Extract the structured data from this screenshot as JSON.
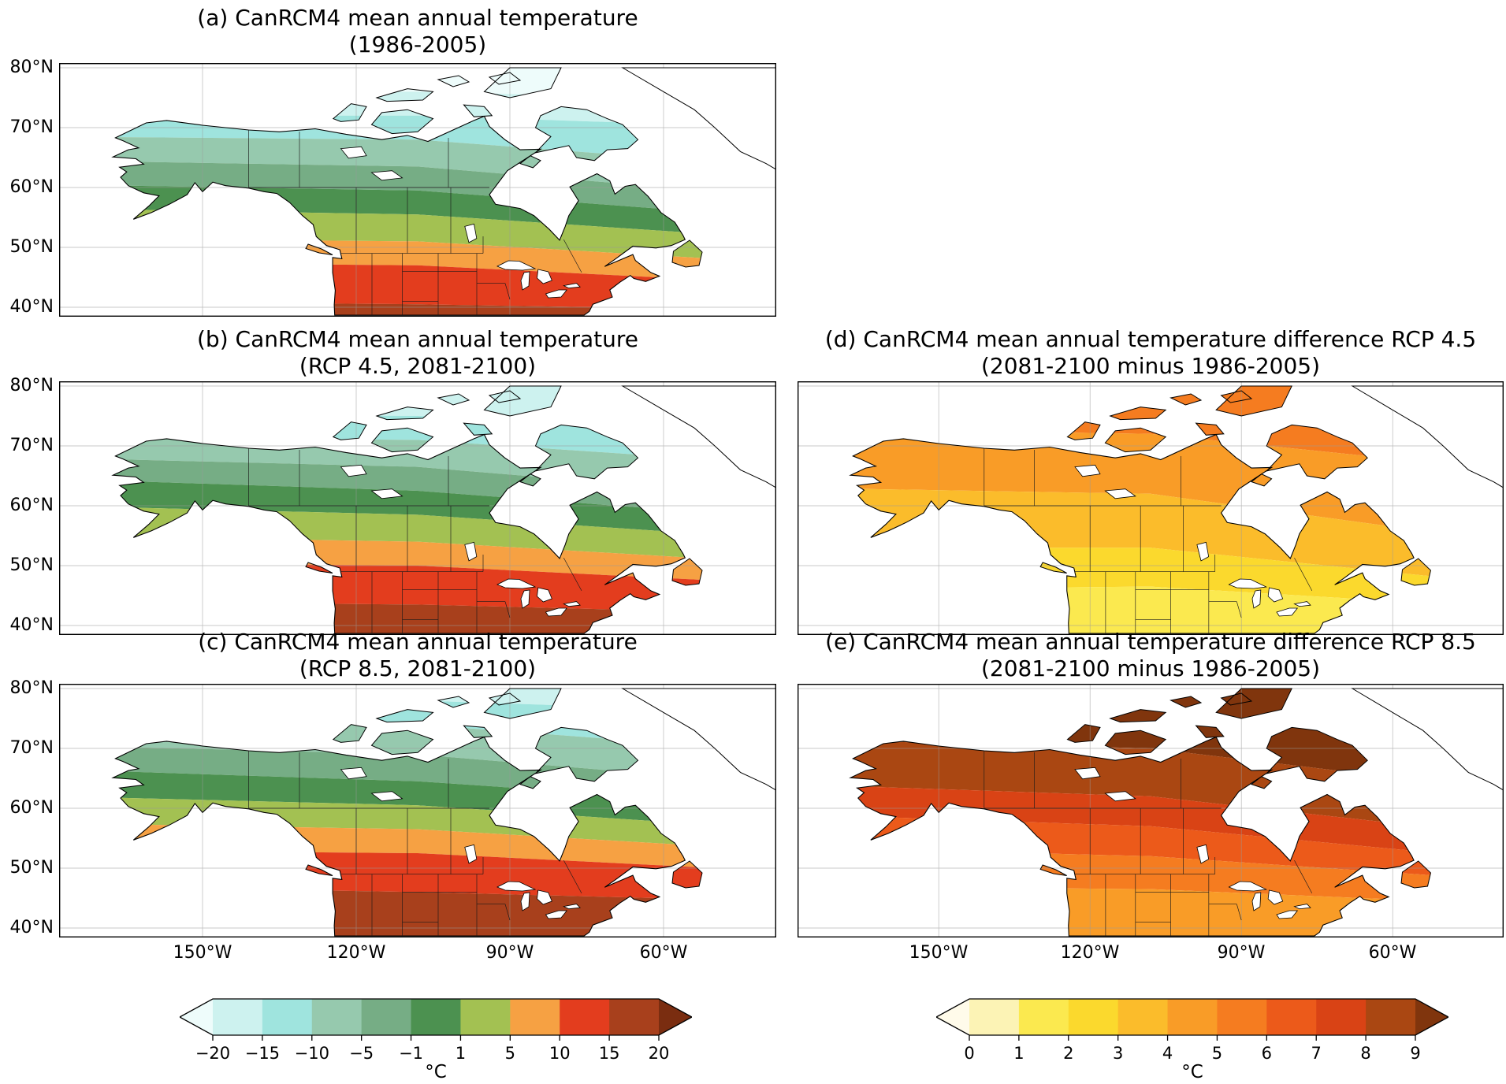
{
  "axes": {
    "lat_ticks": [
      "80°N",
      "70°N",
      "60°N",
      "50°N",
      "40°N"
    ],
    "lon_ticks": [
      "150°W",
      "120°W",
      "90°W",
      "60°W"
    ]
  },
  "panels": [
    {
      "id": "a",
      "title": "(a) CanRCM4 mean annual temperature",
      "subtitle": "(1986-2005)",
      "bands": [
        {
          "level": "< −20",
          "color": "#eefcfb",
          "to": [
            76,
            76,
            74.5
          ]
        },
        {
          "level": "−20 to −15",
          "color": "#cdf2ef",
          "to": [
            72,
            72,
            70
          ]
        },
        {
          "level": "−15 to −10",
          "color": "#9fe4de",
          "to": [
            68.5,
            68,
            63.5
          ]
        },
        {
          "level": "−10 to −5",
          "color": "#96c9ae",
          "to": [
            64.5,
            63.5,
            58.5
          ]
        },
        {
          "level": "−5 to −1",
          "color": "#76ad85",
          "to": [
            60.5,
            59.5,
            55
          ]
        },
        {
          "level": "−1 to 1",
          "color": "#4c9150",
          "to": [
            56.5,
            55.5,
            51.5
          ]
        },
        {
          "level": "1 to 5",
          "color": "#a3c152",
          "to": [
            51.5,
            51,
            47.5
          ]
        },
        {
          "level": "5 to 10",
          "color": "#f6a143",
          "to": [
            47.5,
            47,
            44
          ]
        },
        {
          "level": "10 to 15",
          "color": "#e33d1e",
          "to": [
            41,
            40.5,
            39.5
          ]
        },
        {
          "level": "15 to 20",
          "color": "#a8401c",
          "to": [
            30,
            30,
            30
          ]
        }
      ]
    },
    {
      "id": "b",
      "title": "(b) CanRCM4 mean annual temperature",
      "subtitle": "(RCP 4.5, 2081-2100)",
      "bands": [
        {
          "level": "−20 to −15",
          "color": "#cdf2ef",
          "to": [
            75.5,
            75,
            73
          ]
        },
        {
          "level": "−15 to −10",
          "color": "#9fe4de",
          "to": [
            71.5,
            71,
            67
          ]
        },
        {
          "level": "−10 to −5",
          "color": "#96c9ae",
          "to": [
            68,
            66.5,
            61.5
          ]
        },
        {
          "level": "−5 to −1",
          "color": "#76ad85",
          "to": [
            64.5,
            62.5,
            58
          ]
        },
        {
          "level": "−1 to 1",
          "color": "#4c9150",
          "to": [
            60,
            58.5,
            54.5
          ]
        },
        {
          "level": "1 to 5",
          "color": "#a3c152",
          "to": [
            55,
            54,
            50.5
          ]
        },
        {
          "level": "5 to 10",
          "color": "#f6a143",
          "to": [
            50.5,
            50,
            47
          ]
        },
        {
          "level": "10 to 15",
          "color": "#e33d1e",
          "to": [
            44,
            43.5,
            42
          ]
        },
        {
          "level": "15 to 20",
          "color": "#a8401c",
          "to": [
            30,
            30,
            30
          ]
        }
      ]
    },
    {
      "id": "c",
      "title": "(c) CanRCM4 mean annual temperature",
      "subtitle": "(RCP 8.5, 2081-2100)",
      "bands": [
        {
          "level": "−20 to −15",
          "color": "#cdf2ef",
          "to": [
            78,
            78,
            76
          ]
        },
        {
          "level": "−15 to −10",
          "color": "#9fe4de",
          "to": [
            74.5,
            74,
            69.5
          ]
        },
        {
          "level": "−10 to −5",
          "color": "#96c9ae",
          "to": [
            70.5,
            69,
            64
          ]
        },
        {
          "level": "−5 to −1",
          "color": "#76ad85",
          "to": [
            66.5,
            64.5,
            60.5
          ]
        },
        {
          "level": "−1 to 1",
          "color": "#4c9150",
          "to": [
            62,
            60.5,
            56.5
          ]
        },
        {
          "level": "1 to 5",
          "color": "#a3c152",
          "to": [
            57.5,
            56.5,
            53
          ]
        },
        {
          "level": "5 to 10",
          "color": "#f6a143",
          "to": [
            53,
            52.5,
            49.5
          ]
        },
        {
          "level": "10 to 15",
          "color": "#e33d1e",
          "to": [
            47,
            46,
            44.5
          ]
        },
        {
          "level": "15 to 20",
          "color": "#a8401c",
          "to": [
            30,
            30,
            30
          ]
        }
      ]
    },
    {
      "id": "d",
      "title": "(d) CanRCM4 mean annual temperature difference RCP 4.5",
      "subtitle": "(2081-2100 minus 1986-2005)",
      "bands": [
        {
          "level": "5 to 6",
          "color": "#f57c20",
          "to": [
            73,
            72,
            66
          ]
        },
        {
          "level": "4 to 5",
          "color": "#f99c27",
          "to": [
            63,
            62,
            54
          ]
        },
        {
          "level": "3 to 4",
          "color": "#fbbc2b",
          "to": [
            53,
            53,
            47
          ]
        },
        {
          "level": "2 to 3",
          "color": "#fbd92d",
          "to": [
            46,
            46.5,
            43
          ]
        },
        {
          "level": "1 to 2",
          "color": "#fbe94f",
          "to": [
            30,
            30,
            30
          ]
        }
      ]
    },
    {
      "id": "e",
      "title": "(e) CanRCM4 mean annual temperature difference RCP 8.5",
      "subtitle": "(2081-2100 minus 1986-2005)",
      "bands": [
        {
          "level": "> 9",
          "color": "#80350d",
          "to": [
            71.5,
            70,
            63
          ]
        },
        {
          "level": "8 to 9",
          "color": "#aa4712",
          "to": [
            64,
            62,
            55.5
          ]
        },
        {
          "level": "7 to 8",
          "color": "#d94315",
          "to": [
            59,
            57,
            51.5
          ]
        },
        {
          "level": "6 to 7",
          "color": "#ec5a1a",
          "to": [
            53.5,
            52,
            48
          ]
        },
        {
          "level": "5 to 6",
          "color": "#f57c20",
          "to": [
            47,
            46.5,
            44
          ]
        },
        {
          "level": "4 to 5",
          "color": "#f99c27",
          "to": [
            30,
            30,
            30
          ]
        }
      ]
    }
  ],
  "colorbars": [
    {
      "id": "temperature",
      "ticks": [
        "−20",
        "−15",
        "−10",
        "−5",
        "−1",
        "1",
        "5",
        "10",
        "15",
        "20"
      ],
      "unit": "°C",
      "colors": [
        "#eefcfb",
        "#cdf2ef",
        "#9fe4de",
        "#96c9ae",
        "#76ad85",
        "#4c9150",
        "#a3c152",
        "#f6a143",
        "#e33d1e",
        "#a8401c",
        "#7a2d10"
      ]
    },
    {
      "id": "difference",
      "ticks": [
        "0",
        "1",
        "2",
        "3",
        "4",
        "5",
        "6",
        "7",
        "8",
        "9"
      ],
      "unit": "°C",
      "colors": [
        "#fffbea",
        "#fcf3b5",
        "#fbe94f",
        "#fbd92d",
        "#fbbc2b",
        "#f99c27",
        "#f57c20",
        "#ec5a1a",
        "#d94315",
        "#aa4712",
        "#80350d"
      ]
    }
  ],
  "chart_data": {
    "type": "heatmap",
    "title": "CanRCM4 mean annual temperature maps over North America",
    "panels": [
      {
        "label": "a",
        "title": "(a) CanRCM4 mean annual temperature",
        "subtitle": "(1986-2005)"
      },
      {
        "label": "b",
        "title": "(b) CanRCM4 mean annual temperature",
        "subtitle": "(RCP 4.5, 2081-2100)"
      },
      {
        "label": "c",
        "title": "(c) CanRCM4 mean annual temperature",
        "subtitle": "(RCP 8.5, 2081-2100)"
      },
      {
        "label": "d",
        "title": "(d) CanRCM4 mean annual temperature difference RCP 4.5",
        "subtitle": "(2081-2100 minus 1986-2005)"
      },
      {
        "label": "e",
        "title": "(e) CanRCM4 mean annual temperature difference RCP 8.5",
        "subtitle": "(2081-2100 minus 1986-2005)"
      }
    ],
    "temperature_scale": {
      "boundaries": [
        -20,
        -15,
        -10,
        -5,
        -1,
        1,
        5,
        10,
        15,
        20
      ],
      "unit": "°C",
      "extend": "both"
    },
    "difference_scale": {
      "boundaries": [
        0,
        1,
        2,
        3,
        4,
        5,
        6,
        7,
        8,
        9
      ],
      "unit": "°C",
      "extend": "both"
    },
    "lat_ticks_deg_north": [
      80,
      70,
      60,
      50,
      40
    ],
    "lon_ticks_deg_west": [
      150,
      120,
      90,
      60
    ],
    "grid": true,
    "legend_position": "bottom"
  }
}
